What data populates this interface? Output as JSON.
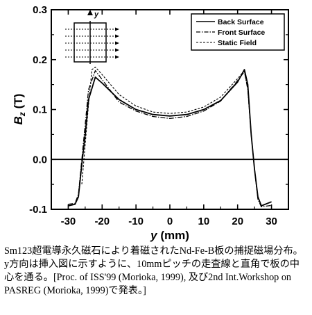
{
  "chart_data": {
    "type": "line",
    "ylabel": "B",
    "ylabel_sub": "z",
    "ylabel_unit": " (T)",
    "xlabel": "y",
    "xlabel_unit": " (mm)",
    "xlim": [
      -35,
      35
    ],
    "ylim": [
      -0.1,
      0.3
    ],
    "x_ticks": [
      -30,
      -20,
      -10,
      0,
      10,
      20,
      30
    ],
    "x_tick_labels": [
      "-30",
      "-20",
      "-10",
      "0",
      "10",
      "20",
      "30"
    ],
    "y_ticks": [
      -0.1,
      0.0,
      0.1,
      0.2,
      0.3
    ],
    "y_tick_labels": [
      "-0.1",
      "0.0",
      "0.1",
      "0.2",
      "0.3"
    ],
    "zero_line": true,
    "grid": false,
    "legend_position": "top-right",
    "series": [
      {
        "name": "Back Surface",
        "style": "solid",
        "points": [
          [
            -30,
            -0.093
          ],
          [
            -28,
            -0.09
          ],
          [
            -27,
            -0.075
          ],
          [
            -26,
            -0.01
          ],
          [
            -25,
            0.05
          ],
          [
            -24,
            0.12
          ],
          [
            -22,
            0.165
          ],
          [
            -20,
            0.153
          ],
          [
            -15,
            0.12
          ],
          [
            -10,
            0.1
          ],
          [
            -5,
            0.09
          ],
          [
            0,
            0.087
          ],
          [
            5,
            0.09
          ],
          [
            10,
            0.1
          ],
          [
            15,
            0.118
          ],
          [
            20,
            0.155
          ],
          [
            22,
            0.18
          ],
          [
            23,
            0.15
          ],
          [
            24,
            0.05
          ],
          [
            25,
            -0.02
          ],
          [
            26,
            -0.075
          ],
          [
            27,
            -0.093
          ],
          [
            30,
            -0.085
          ]
        ]
      },
      {
        "name": "Front Surface",
        "style": "dashdot",
        "points": [
          [
            -30,
            -0.09
          ],
          [
            -28,
            -0.088
          ],
          [
            -27,
            -0.07
          ],
          [
            -26,
            0.0
          ],
          [
            -25,
            0.07
          ],
          [
            -24,
            0.14
          ],
          [
            -22,
            0.178
          ],
          [
            -20,
            0.16
          ],
          [
            -15,
            0.115
          ],
          [
            -10,
            0.097
          ],
          [
            -5,
            0.086
          ],
          [
            0,
            0.082
          ],
          [
            5,
            0.086
          ],
          [
            10,
            0.097
          ],
          [
            15,
            0.117
          ],
          [
            20,
            0.158
          ],
          [
            22,
            0.176
          ],
          [
            23,
            0.14
          ],
          [
            24,
            0.05
          ],
          [
            25,
            -0.02
          ],
          [
            26,
            -0.08
          ],
          [
            27,
            -0.095
          ],
          [
            30,
            -0.092
          ]
        ]
      },
      {
        "name": "Static Field",
        "style": "dashed",
        "points": [
          [
            -26,
            -0.05
          ],
          [
            -25,
            0.03
          ],
          [
            -24,
            0.11
          ],
          [
            -23,
            0.18
          ],
          [
            -22,
            0.185
          ],
          [
            -20,
            0.17
          ],
          [
            -15,
            0.13
          ],
          [
            -10,
            0.107
          ],
          [
            -5,
            0.095
          ],
          [
            0,
            0.092
          ],
          [
            5,
            0.095
          ],
          [
            10,
            0.105
          ],
          [
            15,
            0.125
          ],
          [
            20,
            0.162
          ],
          [
            22,
            0.178
          ],
          [
            23,
            0.14
          ],
          [
            24,
            0.05
          ],
          [
            25,
            -0.02
          ],
          [
            26,
            -0.08
          ]
        ]
      }
    ]
  },
  "caption": "Sm123超電導永久磁石により着磁されたNd-Fe-B板の捕捉磁場分布。y方向は挿入図に示すように、10mmピッチの走査線と直角で板の中心を通る。[Proc. of ISS'99 (Morioka, 1999), 及び2nd Int.Workshop on PASREG (Morioka, 1999)で発表。]",
  "inset": {
    "axis_label": "y"
  }
}
